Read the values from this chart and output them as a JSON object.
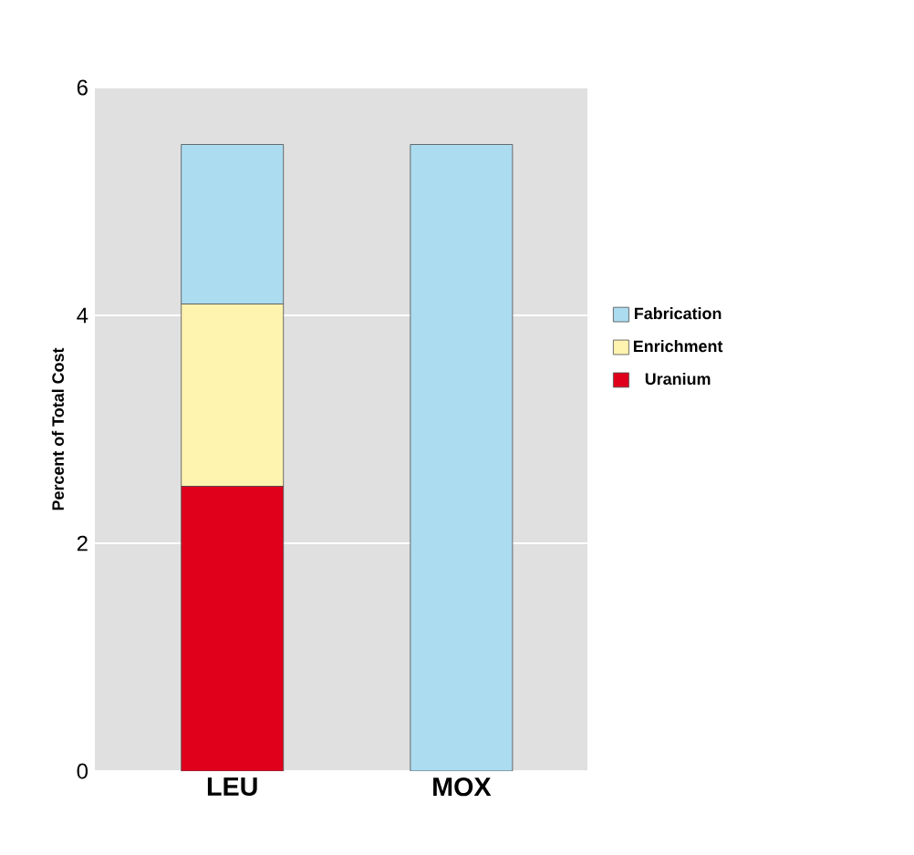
{
  "chart_data": {
    "type": "bar",
    "stacked": true,
    "ylabel": "Percent of Total Cost",
    "categories": [
      "LEU",
      "MOX"
    ],
    "series": [
      {
        "name": "Uranium",
        "color": "#e0001b",
        "values": [
          2.5,
          null
        ]
      },
      {
        "name": "Enrichment",
        "color": "#fff3b0",
        "values": [
          1.6,
          null
        ]
      },
      {
        "name": "Fabrication",
        "color": "#acdcf0",
        "values": [
          1.4,
          5.5
        ]
      }
    ],
    "ylim": [
      0,
      6
    ],
    "yticks": [
      0,
      2,
      4,
      6
    ],
    "grid": "y",
    "legend": "right"
  }
}
